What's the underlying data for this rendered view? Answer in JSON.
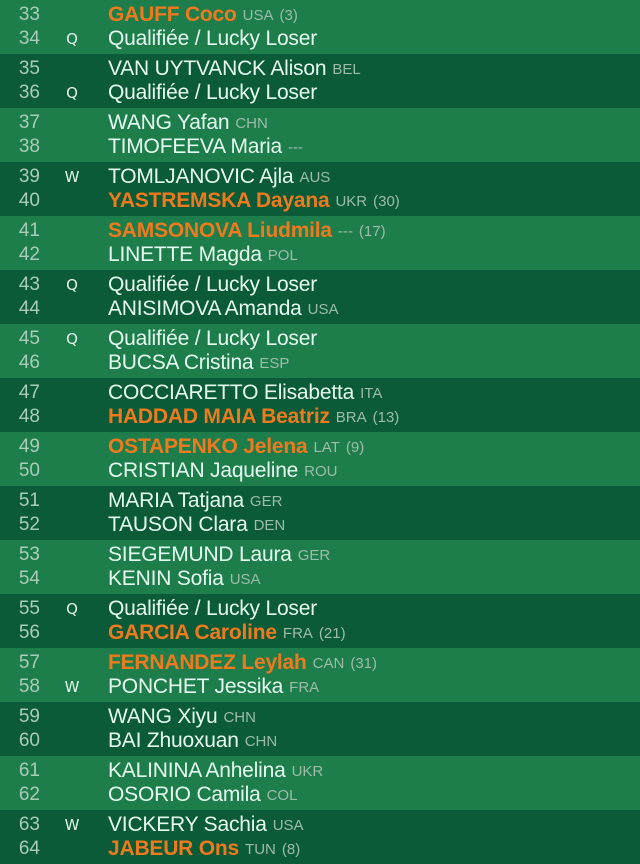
{
  "colors": {
    "light_row": "#1d7d4b",
    "dark_row": "#0b5a38",
    "seeded_name": "#ee7a1e",
    "name": "#e6fbf0",
    "country": "#9dbcaa"
  },
  "entries": [
    {
      "num": "33",
      "flag": "",
      "name": "GAUFF Coco",
      "country": "USA",
      "seed": "(3)",
      "seeded": true
    },
    {
      "num": "34",
      "flag": "Q",
      "name": "Qualifiée / Lucky Loser",
      "country": "",
      "seed": "",
      "seeded": false
    },
    {
      "num": "35",
      "flag": "",
      "name": "VAN UYTVANCK Alison",
      "country": "BEL",
      "seed": "",
      "seeded": false
    },
    {
      "num": "36",
      "flag": "Q",
      "name": "Qualifiée / Lucky Loser",
      "country": "",
      "seed": "",
      "seeded": false
    },
    {
      "num": "37",
      "flag": "",
      "name": "WANG Yafan",
      "country": "CHN",
      "seed": "",
      "seeded": false
    },
    {
      "num": "38",
      "flag": "",
      "name": "TIMOFEEVA Maria",
      "country": "---",
      "seed": "",
      "seeded": false
    },
    {
      "num": "39",
      "flag": "W",
      "name": "TOMLJANOVIC Ajla",
      "country": "AUS",
      "seed": "",
      "seeded": false
    },
    {
      "num": "40",
      "flag": "",
      "name": "YASTREMSKA Dayana",
      "country": "UKR",
      "seed": "(30)",
      "seeded": true
    },
    {
      "num": "41",
      "flag": "",
      "name": "SAMSONOVA Liudmila",
      "country": "---",
      "seed": "(17)",
      "seeded": true
    },
    {
      "num": "42",
      "flag": "",
      "name": "LINETTE Magda",
      "country": "POL",
      "seed": "",
      "seeded": false
    },
    {
      "num": "43",
      "flag": "Q",
      "name": "Qualifiée / Lucky Loser",
      "country": "",
      "seed": "",
      "seeded": false
    },
    {
      "num": "44",
      "flag": "",
      "name": "ANISIMOVA Amanda",
      "country": "USA",
      "seed": "",
      "seeded": false
    },
    {
      "num": "45",
      "flag": "Q",
      "name": "Qualifiée / Lucky Loser",
      "country": "",
      "seed": "",
      "seeded": false
    },
    {
      "num": "46",
      "flag": "",
      "name": "BUCSA Cristina",
      "country": "ESP",
      "seed": "",
      "seeded": false
    },
    {
      "num": "47",
      "flag": "",
      "name": "COCCIARETTO Elisabetta",
      "country": "ITA",
      "seed": "",
      "seeded": false
    },
    {
      "num": "48",
      "flag": "",
      "name": "HADDAD MAIA Beatriz",
      "country": "BRA",
      "seed": "(13)",
      "seeded": true
    },
    {
      "num": "49",
      "flag": "",
      "name": "OSTAPENKO Jelena",
      "country": "LAT",
      "seed": "(9)",
      "seeded": true
    },
    {
      "num": "50",
      "flag": "",
      "name": "CRISTIAN Jaqueline",
      "country": "ROU",
      "seed": "",
      "seeded": false
    },
    {
      "num": "51",
      "flag": "",
      "name": "MARIA Tatjana",
      "country": "GER",
      "seed": "",
      "seeded": false
    },
    {
      "num": "52",
      "flag": "",
      "name": "TAUSON Clara",
      "country": "DEN",
      "seed": "",
      "seeded": false
    },
    {
      "num": "53",
      "flag": "",
      "name": "SIEGEMUND Laura",
      "country": "GER",
      "seed": "",
      "seeded": false
    },
    {
      "num": "54",
      "flag": "",
      "name": "KENIN Sofia",
      "country": "USA",
      "seed": "",
      "seeded": false
    },
    {
      "num": "55",
      "flag": "Q",
      "name": "Qualifiée / Lucky Loser",
      "country": "",
      "seed": "",
      "seeded": false
    },
    {
      "num": "56",
      "flag": "",
      "name": "GARCIA Caroline",
      "country": "FRA",
      "seed": "(21)",
      "seeded": true
    },
    {
      "num": "57",
      "flag": "",
      "name": "FERNANDEZ Leylah",
      "country": "CAN",
      "seed": "(31)",
      "seeded": true
    },
    {
      "num": "58",
      "flag": "W",
      "name": "PONCHET Jessika",
      "country": "FRA",
      "seed": "",
      "seeded": false
    },
    {
      "num": "59",
      "flag": "",
      "name": "WANG Xiyu",
      "country": "CHN",
      "seed": "",
      "seeded": false
    },
    {
      "num": "60",
      "flag": "",
      "name": "BAI Zhuoxuan",
      "country": "CHN",
      "seed": "",
      "seeded": false
    },
    {
      "num": "61",
      "flag": "",
      "name": "KALININA Anhelina",
      "country": "UKR",
      "seed": "",
      "seeded": false
    },
    {
      "num": "62",
      "flag": "",
      "name": "OSORIO Camila",
      "country": "COL",
      "seed": "",
      "seeded": false
    },
    {
      "num": "63",
      "flag": "W",
      "name": "VICKERY Sachia",
      "country": "USA",
      "seed": "",
      "seeded": false
    },
    {
      "num": "64",
      "flag": "",
      "name": "JABEUR Ons",
      "country": "TUN",
      "seed": "(8)",
      "seeded": true
    }
  ]
}
